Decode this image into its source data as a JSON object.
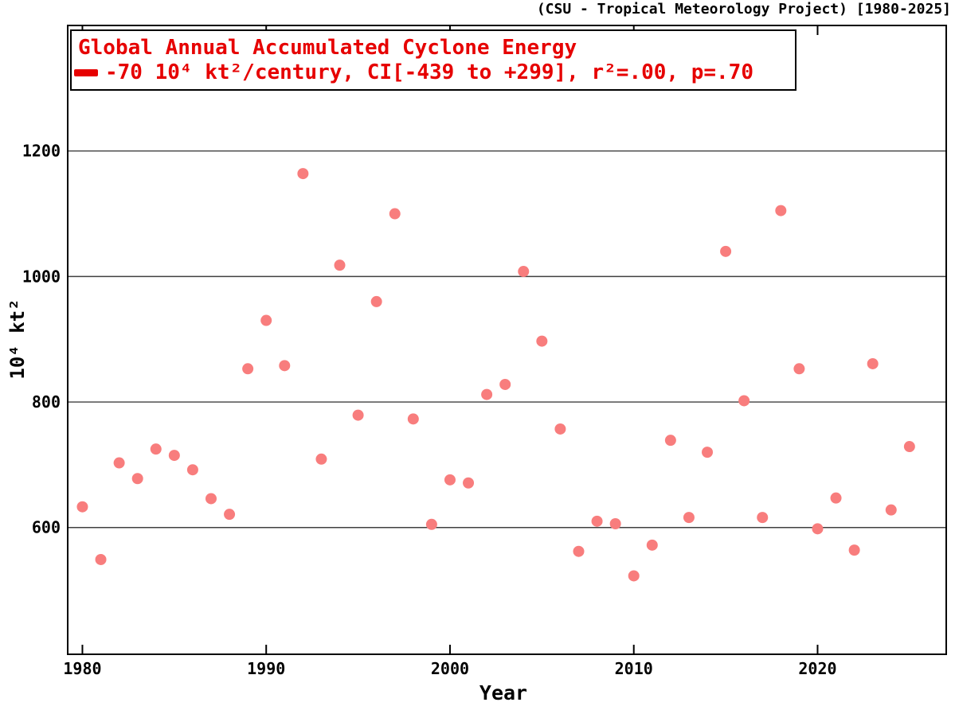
{
  "header": {
    "attribution": "(CSU - Tropical Meteorology Project) [1980-2025]"
  },
  "legend": {
    "title": "Global Annual Accumulated Cyclone Energy",
    "trend_label": "-70 10⁴ kt²/century, CI[-439 to +299], r²=.00, p=.70",
    "text_color": "#e60000",
    "swatch_color": "#e60000"
  },
  "chart_data": {
    "type": "scatter",
    "title": "Global Annual Accumulated Cyclone Energy",
    "xlabel": "Year",
    "ylabel": "10⁴ kt²",
    "xlim": [
      1979.2,
      2027
    ],
    "ylim": [
      398,
      1400
    ],
    "x_ticks": [
      1980,
      1990,
      2000,
      2010,
      2020
    ],
    "y_ticks": [
      600,
      800,
      1000,
      1200
    ],
    "grid": "horizontal",
    "legend_position": "top-left",
    "point_color": "#f87d7d",
    "grid_color": "#404040",
    "x": [
      1980,
      1981,
      1982,
      1983,
      1984,
      1985,
      1986,
      1987,
      1988,
      1989,
      1990,
      1991,
      1992,
      1993,
      1994,
      1995,
      1996,
      1997,
      1998,
      1999,
      2000,
      2001,
      2002,
      2003,
      2004,
      2005,
      2006,
      2007,
      2008,
      2009,
      2010,
      2011,
      2012,
      2013,
      2014,
      2015,
      2016,
      2017,
      2018,
      2019,
      2020,
      2021,
      2022,
      2023,
      2024,
      2025
    ],
    "y": [
      633,
      549,
      703,
      678,
      725,
      715,
      692,
      646,
      621,
      853,
      930,
      858,
      1164,
      709,
      1018,
      779,
      960,
      1100,
      773,
      605,
      676,
      671,
      812,
      828,
      1008,
      897,
      757,
      562,
      610,
      606,
      523,
      572,
      739,
      616,
      720,
      1040,
      802,
      616,
      1105,
      853,
      598,
      647,
      564,
      861,
      628,
      729
    ]
  }
}
